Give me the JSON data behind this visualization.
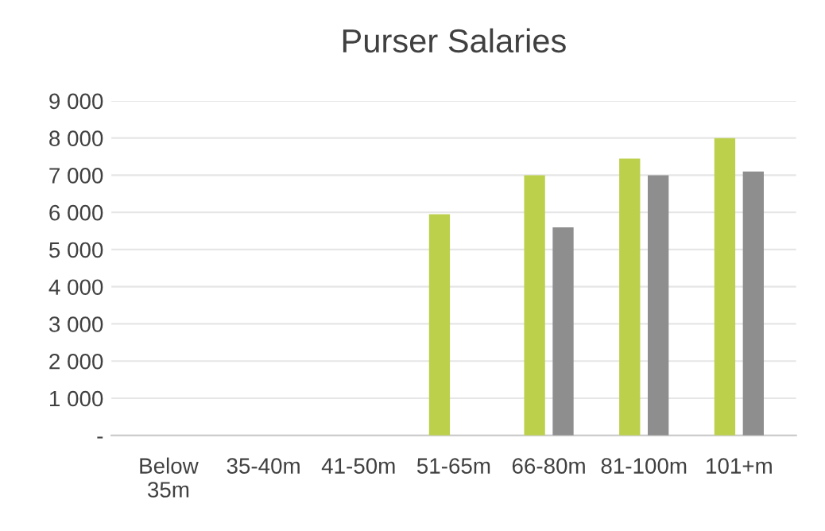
{
  "chart_data": {
    "type": "bar",
    "title": "Purser Salaries",
    "categories": [
      "Below\n35m",
      "35-40m",
      "41-50m",
      "51-65m",
      "66-80m",
      "81-100m",
      "101+m"
    ],
    "series": [
      {
        "color": "#bdd04c",
        "values": [
          null,
          null,
          null,
          5950,
          7000,
          7450,
          8000
        ]
      },
      {
        "color": "#8e8e8e",
        "values": [
          null,
          null,
          null,
          null,
          5600,
          7000,
          7100
        ]
      }
    ],
    "ylim": [
      0,
      9000
    ],
    "yticks": [
      {
        "value": 0,
        "label": "-"
      },
      {
        "value": 1000,
        "label": "1 000"
      },
      {
        "value": 2000,
        "label": "2 000"
      },
      {
        "value": 3000,
        "label": "3 000"
      },
      {
        "value": 4000,
        "label": "4 000"
      },
      {
        "value": 5000,
        "label": "5 000"
      },
      {
        "value": 6000,
        "label": "6 000"
      },
      {
        "value": 7000,
        "label": "7 000"
      },
      {
        "value": 8000,
        "label": "8 000"
      },
      {
        "value": 9000,
        "label": "9 000"
      }
    ],
    "grid": "y"
  }
}
